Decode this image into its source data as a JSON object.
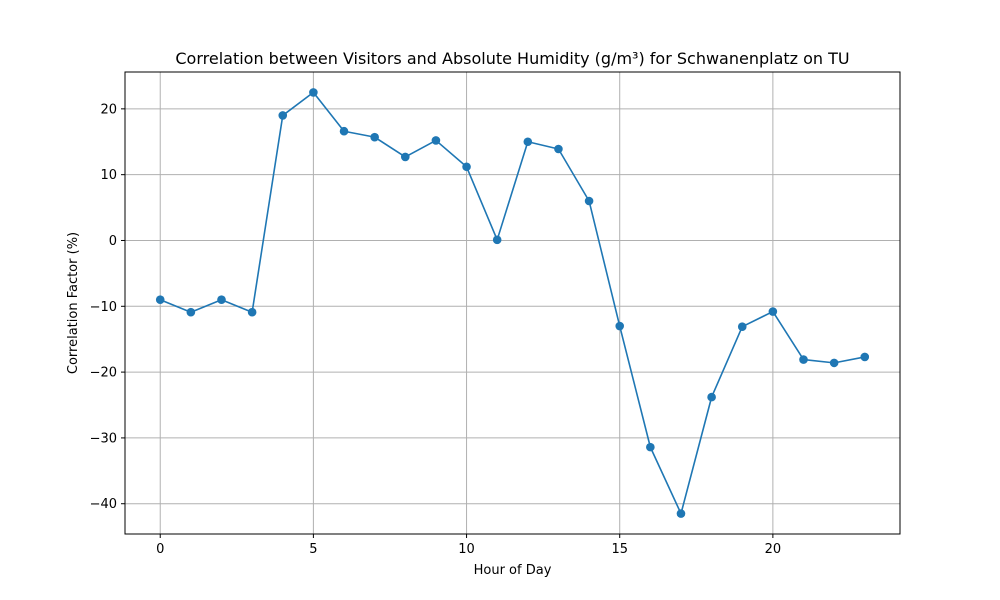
{
  "chart_data": {
    "type": "line",
    "title": "Correlation between Visitors and Absolute Humidity (g/m³) for Schwanenplatz on TU",
    "xlabel": "Hour of Day",
    "ylabel": "Correlation Factor (%)",
    "xlim": [
      -1.15,
      24.15
    ],
    "ylim": [
      -44.6,
      25.6
    ],
    "xticks": [
      0,
      5,
      10,
      15,
      20
    ],
    "yticks": [
      -40,
      -30,
      -20,
      -10,
      0,
      10,
      20
    ],
    "xtick_labels": [
      "0",
      "5",
      "10",
      "15",
      "20"
    ],
    "ytick_labels": [
      "−40",
      "−30",
      "−20",
      "−10",
      "0",
      "10",
      "20"
    ],
    "grid": true,
    "series": [
      {
        "color": "#1f77b4",
        "marker": "circle",
        "x": [
          0,
          1,
          2,
          3,
          4,
          5,
          6,
          7,
          8,
          9,
          10,
          11,
          12,
          13,
          14,
          15,
          16,
          17,
          18,
          19,
          20,
          21,
          22,
          23
        ],
        "y": [
          -9.0,
          -10.9,
          -9.0,
          -10.9,
          19.0,
          22.5,
          16.6,
          15.7,
          12.7,
          15.2,
          11.2,
          0.1,
          15.0,
          13.9,
          6.0,
          -13.0,
          -31.4,
          -41.5,
          -23.8,
          -13.1,
          -10.8,
          -18.1,
          -18.6,
          -17.7
        ]
      }
    ]
  }
}
